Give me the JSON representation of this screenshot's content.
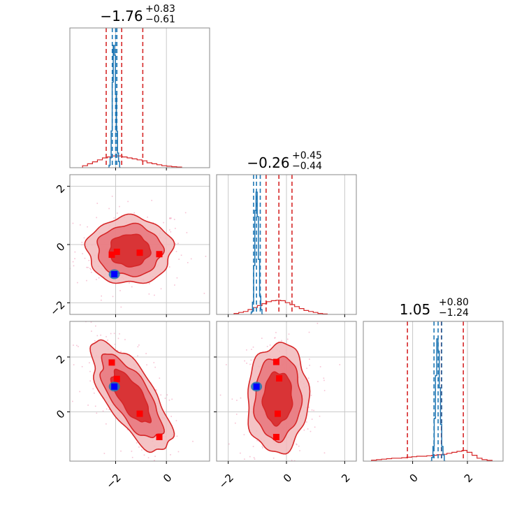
{
  "chart_data": {
    "type": "corner",
    "colors": {
      "red": "#d62728",
      "blue": "#1f77b4",
      "grid": "#c8c8c8",
      "scatter_pink": "#f4a6c0",
      "marker": "#ff0000"
    },
    "grid": true,
    "parameters": [
      {
        "title": "−1.76",
        "sup": "+0.83",
        "sub": "−0.61",
        "median": -1.76,
        "upper_err": 0.83,
        "lower_err": 0.61,
        "range": [
          -3.8,
          1.7
        ],
        "ticks": [
          {
            "v": -2,
            "label": "−2"
          },
          {
            "v": 0,
            "label": "0"
          }
        ],
        "red_quantiles": [
          -2.37,
          -1.76,
          -0.93
        ],
        "blue_quantiles": [
          -2.13,
          -2.0,
          -1.95
        ],
        "red_hist": {
          "lo": -3.3,
          "hi": 0.6,
          "values": [
            0.02,
            0.04,
            0.06,
            0.08,
            0.1,
            0.11,
            0.12,
            0.12,
            0.11,
            0.1,
            0.09,
            0.08,
            0.07,
            0.05,
            0.04,
            0.03,
            0.02,
            0.015,
            0.01,
            0.006
          ]
        },
        "blue_hist": {
          "lo": -2.3,
          "hi": -1.8,
          "values": [
            0.0,
            0.02,
            0.08,
            0.3,
            0.7,
            1.0,
            0.92,
            0.6,
            0.3,
            0.12,
            0.05,
            0.0
          ]
        }
      },
      {
        "title": "−0.26",
        "sup": "+0.45",
        "sub": "−0.44",
        "median": -0.26,
        "upper_err": 0.45,
        "lower_err": 0.44,
        "range": [
          -2.4,
          2.4
        ],
        "ticks": [
          {
            "v": -2,
            "label": "−2"
          },
          {
            "v": 0,
            "label": "0"
          },
          {
            "v": 2,
            "label": "2"
          }
        ],
        "red_quantiles": [
          -0.7,
          -0.26,
          0.19
        ],
        "blue_quantiles": [
          -1.13,
          -1.03,
          -0.9
        ],
        "red_hist": {
          "lo": -1.8,
          "hi": 1.4,
          "values": [
            0.01,
            0.02,
            0.03,
            0.05,
            0.07,
            0.09,
            0.11,
            0.13,
            0.14,
            0.145,
            0.14,
            0.12,
            0.1,
            0.08,
            0.06,
            0.04,
            0.03,
            0.02,
            0.01,
            0.005
          ]
        },
        "blue_hist": {
          "lo": -1.25,
          "hi": -0.8,
          "values": [
            0.0,
            0.02,
            0.1,
            0.4,
            0.85,
            1.0,
            0.8,
            0.45,
            0.15,
            0.04,
            0.0
          ]
        }
      },
      {
        "title": "1.05",
        "sup": "+0.80",
        "sub": "−1.24",
        "median": 1.05,
        "upper_err": 0.8,
        "lower_err": 1.24,
        "range": [
          -1.8,
          3.3
        ],
        "ticks": [
          {
            "v": 0,
            "label": "0"
          },
          {
            "v": 2,
            "label": "2"
          }
        ],
        "red_quantiles": [
          -0.19,
          1.05,
          1.85
        ],
        "blue_quantiles": [
          0.78,
          0.93,
          1.06
        ],
        "red_hist": {
          "lo": -1.5,
          "hi": 2.9,
          "values": [
            0.01,
            0.015,
            0.02,
            0.025,
            0.03,
            0.03,
            0.035,
            0.04,
            0.045,
            0.05,
            0.05,
            0.055,
            0.06,
            0.065,
            0.07,
            0.08,
            0.09,
            0.1,
            0.11,
            0.09,
            0.06,
            0.03,
            0.015,
            0.008
          ]
        },
        "blue_hist": {
          "lo": 0.65,
          "hi": 1.2,
          "values": [
            0.0,
            0.03,
            0.12,
            0.35,
            0.7,
            1.0,
            0.9,
            0.6,
            0.3,
            0.12,
            0.05,
            0.0
          ]
        }
      }
    ],
    "pair_panels": [
      {
        "xi": 0,
        "yi": 1,
        "mean": [
          -1.45,
          -0.2
        ],
        "sd": [
          0.8,
          0.55
        ],
        "rho": 0.0,
        "levels": [
          1.0,
          1.6,
          2.1
        ],
        "wobble": 0.08,
        "markers": [
          [
            -2.15,
            -0.35
          ],
          [
            -1.95,
            -0.25
          ],
          [
            -1.05,
            -0.28
          ],
          [
            -0.28,
            -0.33
          ]
        ],
        "blue_point": [
          -2.05,
          -1.02
        ]
      },
      {
        "xi": 0,
        "yi": 2,
        "mean": [
          -1.4,
          0.55
        ],
        "sd": [
          0.75,
          0.95
        ],
        "rho": -0.72,
        "levels": [
          1.0,
          1.6,
          2.1
        ],
        "wobble": 0.1,
        "markers": [
          [
            -2.15,
            1.8
          ],
          [
            -1.95,
            1.2
          ],
          [
            -1.05,
            -0.07
          ],
          [
            -0.28,
            -0.92
          ]
        ],
        "blue_point": [
          -2.05,
          0.92
        ]
      },
      {
        "xi": 1,
        "yi": 2,
        "mean": [
          -0.3,
          0.5
        ],
        "sd": [
          0.5,
          0.95
        ],
        "rho": 0.05,
        "levels": [
          1.0,
          1.6,
          2.1
        ],
        "wobble": 0.08,
        "markers": [
          [
            -0.35,
            1.82
          ],
          [
            -0.25,
            1.22
          ],
          [
            -0.3,
            -0.07
          ],
          [
            -0.35,
            -0.92
          ]
        ],
        "blue_point": [
          -1.03,
          0.92
        ]
      }
    ]
  }
}
